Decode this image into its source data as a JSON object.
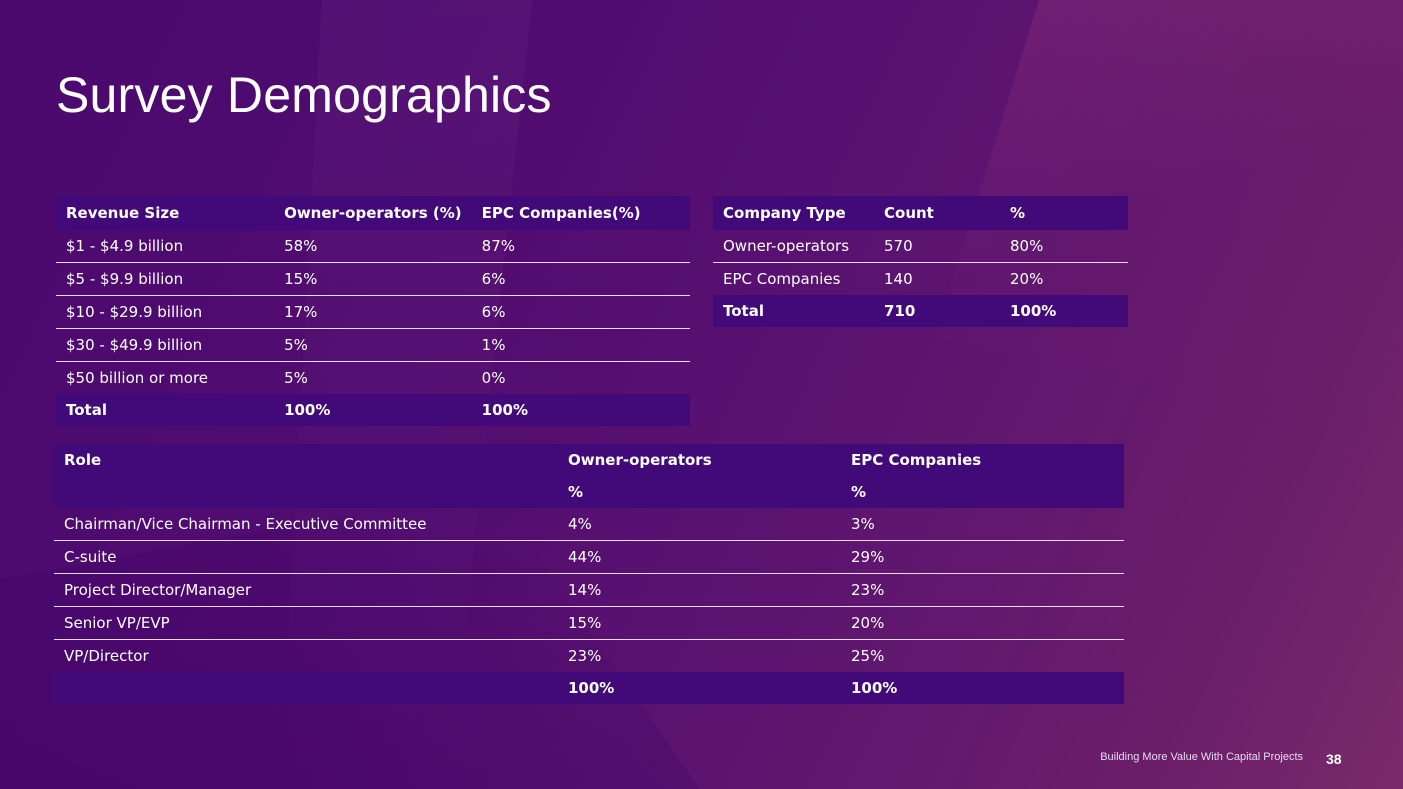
{
  "slide": {
    "title": "Survey Demographics",
    "footer": "Building More Value With Capital Projects",
    "page_number": "38"
  },
  "revenue_table": {
    "headers": [
      "Revenue Size",
      "Owner-operators (%)",
      "EPC Companies(%)"
    ],
    "rows": [
      [
        "$1 - $4.9 billion",
        "58%",
        "87%"
      ],
      [
        "$5 - $9.9 billion",
        "15%",
        "6%"
      ],
      [
        "$10 - $29.9 billion",
        "17%",
        "6%"
      ],
      [
        "$30 - $49.9 billion",
        "5%",
        "1%"
      ],
      [
        "$50 billion or more",
        "5%",
        "0%"
      ]
    ],
    "total": [
      "Total",
      "100%",
      "100%"
    ]
  },
  "company_table": {
    "headers": [
      "Company Type",
      "Count",
      "%"
    ],
    "rows": [
      [
        "Owner-operators",
        "570",
        "80%"
      ],
      [
        "EPC Companies",
        "140",
        "20%"
      ]
    ],
    "total": [
      "Total",
      "710",
      "100%"
    ]
  },
  "role_table": {
    "headers": [
      "Role",
      "Owner-operators",
      "EPC Companies"
    ],
    "subheaders": [
      "",
      "%",
      "%"
    ],
    "rows": [
      [
        "Chairman/Vice Chairman - Executive Committee",
        "4%",
        "3%"
      ],
      [
        "C-suite",
        "44%",
        "29%"
      ],
      [
        "Project Director/Manager",
        "14%",
        "23%"
      ],
      [
        "Senior VP/EVP",
        "15%",
        "20%"
      ],
      [
        "VP/Director",
        "23%",
        "25%"
      ]
    ],
    "total": [
      "",
      "100%",
      "100%"
    ]
  },
  "colors": {
    "background": "#4e0c6f",
    "header_fill": "#410a78",
    "text": "#ffffff"
  }
}
